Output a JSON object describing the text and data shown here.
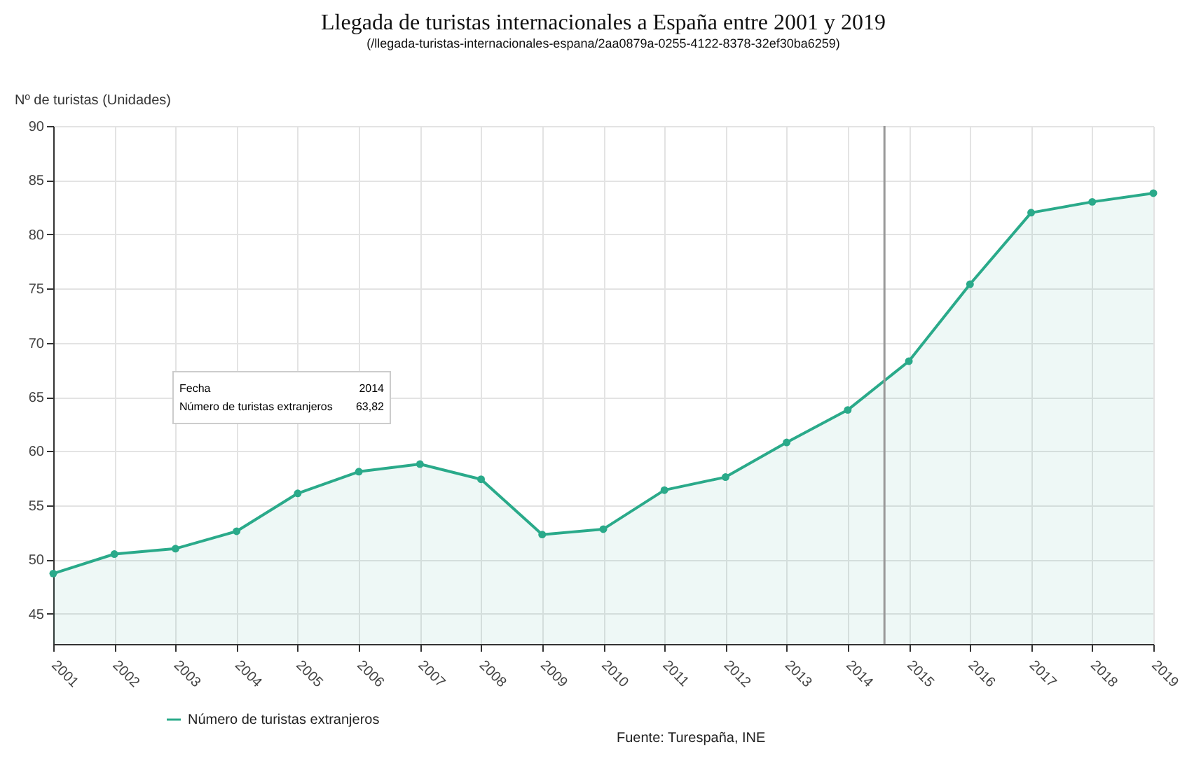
{
  "chart_data": {
    "type": "area",
    "title": "Llegada de turistas internacionales a España entre 2001 y 2019",
    "subtitle": "(/llegada-turistas-internacionales-espana/2aa0879a-0255-4122-8378-32ef30ba6259)",
    "ylabel": "Nº de turistas (Unidades)",
    "x": [
      2001,
      2002,
      2003,
      2004,
      2005,
      2006,
      2007,
      2008,
      2009,
      2010,
      2011,
      2012,
      2013,
      2014,
      2015,
      2016,
      2017,
      2018,
      2019
    ],
    "series": [
      {
        "name": "Número de turistas extranjeros",
        "color": "#2aaa8a",
        "values": [
          48.7,
          50.5,
          51.0,
          52.6,
          56.1,
          58.1,
          58.8,
          57.4,
          52.3,
          52.8,
          56.4,
          57.6,
          60.8,
          63.8,
          68.3,
          75.4,
          82.0,
          83.0,
          83.8
        ]
      }
    ],
    "xlim": [
      2001,
      2019
    ],
    "xticks": [
      2001,
      2002,
      2003,
      2004,
      2005,
      2006,
      2007,
      2008,
      2009,
      2010,
      2011,
      2012,
      2013,
      2014,
      2015,
      2016,
      2017,
      2018,
      2019
    ],
    "ylim": [
      42.2,
      90
    ],
    "yticks": [
      45,
      50,
      55,
      60,
      65,
      70,
      75,
      80,
      85,
      90
    ],
    "grid": true,
    "marker": "circle",
    "legend": "bottom",
    "ref_lines": [
      {
        "axis": "x",
        "value": 2014.6,
        "color": "#999999"
      }
    ],
    "annotations": [
      "Fecha",
      "2014",
      "Número de turistas extranjeros",
      "63,82",
      "Fuente: Turespaña, INE"
    ]
  }
}
